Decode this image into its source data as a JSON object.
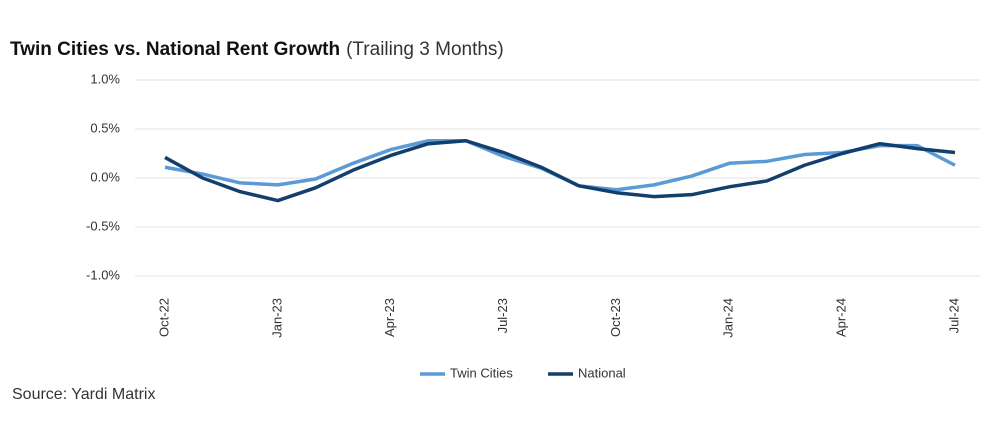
{
  "chart_data": {
    "type": "line",
    "title": "Twin Cities vs. National Rent Growth",
    "subtitle": "(Trailing 3 Months)",
    "source": "Source: Yardi Matrix",
    "categories": [
      "Oct-22",
      null,
      null,
      "Jan-23",
      null,
      null,
      "Apr-23",
      null,
      null,
      "Jul-23",
      null,
      null,
      "Oct-23",
      null,
      null,
      "Jan-24",
      null,
      null,
      "Apr-24",
      null,
      null,
      "Jul-24"
    ],
    "series": [
      {
        "name": "Twin Cities",
        "color": "#5b9bd5",
        "values": [
          0.11,
          0.04,
          -0.05,
          -0.07,
          -0.01,
          0.15,
          0.29,
          0.38,
          0.38,
          0.22,
          0.1,
          -0.08,
          -0.12,
          -0.07,
          0.02,
          0.15,
          0.17,
          0.24,
          0.26,
          0.33,
          0.33,
          0.13
        ]
      },
      {
        "name": "National",
        "color": "#123f6e",
        "values": [
          0.21,
          0.0,
          -0.14,
          -0.23,
          -0.1,
          0.08,
          0.23,
          0.35,
          0.38,
          0.26,
          0.11,
          -0.08,
          -0.15,
          -0.19,
          -0.17,
          -0.09,
          -0.03,
          0.13,
          0.25,
          0.35,
          0.3,
          0.26
        ]
      }
    ],
    "ylim": [
      -1.0,
      1.0
    ],
    "yticks": [
      {
        "value": -1.0,
        "label": "-1.0%"
      },
      {
        "value": -0.5,
        "label": "-0.5%"
      },
      {
        "value": 0,
        "label": "0.0%"
      },
      {
        "value": 0.5,
        "label": "0.5%"
      },
      {
        "value": 1.0,
        "label": "1.0%"
      }
    ],
    "grid": true,
    "legend": "bottom"
  }
}
